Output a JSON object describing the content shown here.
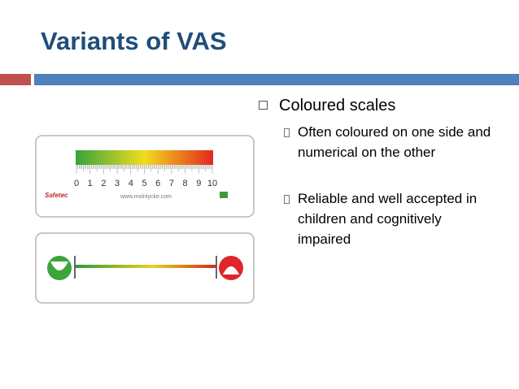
{
  "header": {
    "title": "Variants of VAS"
  },
  "bullets": [
    {
      "text": "Coloured scales",
      "children": [
        "Often coloured on one side and numerical on the other",
        "Reliable and well accepted in children and cognitively impaired"
      ]
    }
  ],
  "images": {
    "scale": {
      "numbers": [
        0,
        1,
        2,
        3,
        4,
        5,
        6,
        7,
        8,
        9,
        10
      ],
      "brand": "Safetec",
      "url": "www.molnlycke.com"
    }
  }
}
